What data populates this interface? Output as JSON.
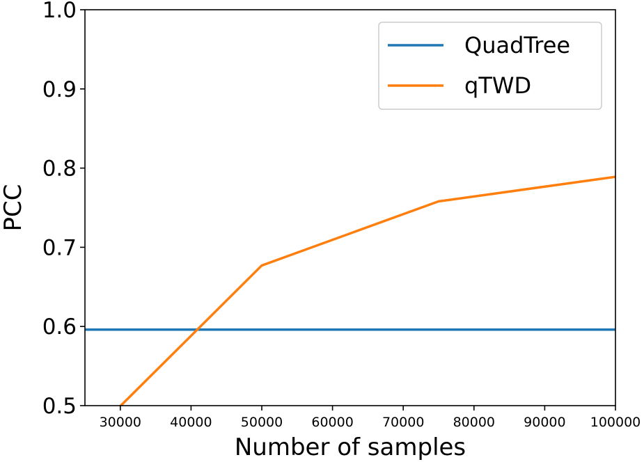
{
  "chart_data": {
    "type": "line",
    "xlabel": "Number of samples",
    "ylabel": "PCC",
    "xlim": [
      25000,
      100000
    ],
    "ylim": [
      0.5,
      1.0
    ],
    "x_ticks": [
      30000,
      40000,
      50000,
      60000,
      70000,
      80000,
      90000,
      100000
    ],
    "x_tick_labels": [
      "30000",
      "40000",
      "50000",
      "60000",
      "70000",
      "80000",
      "90000",
      "100000"
    ],
    "y_ticks": [
      0.5,
      0.6,
      0.7,
      0.8,
      0.9,
      1.0
    ],
    "y_tick_labels": [
      "0.5",
      "0.6",
      "0.7",
      "0.8",
      "0.9",
      "1.0"
    ],
    "grid": false,
    "legend": {
      "position": "upper-right"
    },
    "series": [
      {
        "name": "QuadTree",
        "color": "#1f77b4",
        "x": [
          25000,
          100000
        ],
        "y": [
          0.596,
          0.596
        ]
      },
      {
        "name": "qTWD",
        "color": "#ff7f0e",
        "x": [
          25000,
          50000,
          75000,
          100000
        ],
        "y": [
          0.455,
          0.677,
          0.758,
          0.789
        ]
      }
    ]
  }
}
